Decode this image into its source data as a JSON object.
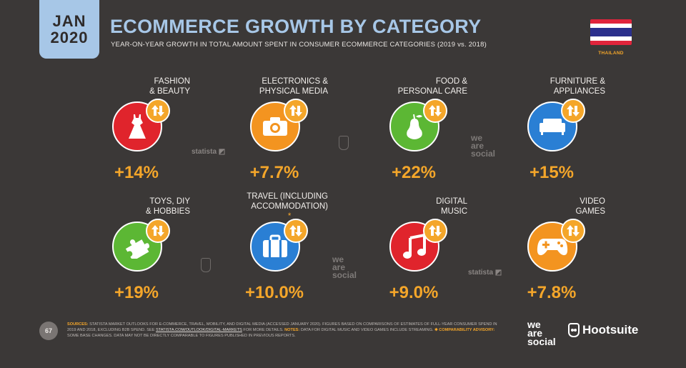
{
  "header": {
    "month": "JAN",
    "year": "2020",
    "title": "ECOMMERCE GROWTH BY CATEGORY",
    "subtitle": "YEAR-ON-YEAR GROWTH IN TOTAL AMOUNT SPENT IN CONSUMER ECOMMERCE CATEGORIES (2019 vs. 2018)"
  },
  "country": {
    "name": "THAILAND",
    "flag_colors": [
      "#e0243c",
      "#ffffff",
      "#2b2f8c",
      "#ffffff",
      "#e0243c"
    ]
  },
  "categories": [
    {
      "label_lines": [
        "FASHION",
        "& BEAUTY"
      ],
      "value": "+14%",
      "icon": "dress-icon",
      "color": "#e0242c"
    },
    {
      "label_lines": [
        "ELECTRONICS &",
        "PHYSICAL MEDIA"
      ],
      "value": "+7.7%",
      "icon": "camera-icon",
      "color": "#f39420"
    },
    {
      "label_lines": [
        "FOOD &",
        "PERSONAL CARE"
      ],
      "value": "+22%",
      "icon": "pear-icon",
      "color": "#5cb734"
    },
    {
      "label_lines": [
        "FURNITURE &",
        "APPLIANCES"
      ],
      "value": "+15%",
      "icon": "sofa-icon",
      "color": "#2a7fd4"
    },
    {
      "label_lines": [
        "TOYS, DIY",
        "& HOBBIES"
      ],
      "value": "+19%",
      "icon": "puzzle-icon",
      "color": "#5cb734"
    },
    {
      "label_lines": [
        "TRAVEL (INCLUDING",
        "ACCOMMODATION)"
      ],
      "asterisk": "*",
      "value": "+10.0%",
      "icon": "luggage-icon",
      "color": "#2a7fd4"
    },
    {
      "label_lines": [
        "DIGITAL",
        "MUSIC"
      ],
      "value": "+9.0%",
      "icon": "music-note-icon",
      "color": "#e0242c"
    },
    {
      "label_lines": [
        "VIDEO",
        "GAMES"
      ],
      "value": "+7.8%",
      "icon": "gamepad-icon",
      "color": "#f39420"
    }
  ],
  "watermarks": {
    "statista": "statista",
    "we": "we",
    "are": "are",
    "social": "social"
  },
  "footer": {
    "page_number": "67",
    "sources_label": "SOURCES:",
    "sources_text": "STATISTA MARKET OUTLOOKS FOR E-COMMERCE, TRAVEL, MOBILITY, AND DIGITAL MEDIA (ACCESSED JANUARY 2020). FIGURES BASED ON COMPARISONS OF ESTIMATES OF FULL-YEAR CONSUMER SPEND IN 2019 AND 2018, EXCLUDING B2B SPEND. SEE",
    "link": "STATISTA.COM/OUTLOOK/DIGITAL-MARKETS",
    "after_link": "FOR MORE DETAILS.",
    "notes_label": "NOTES:",
    "notes_text": "DATA FOR DIGITAL MUSIC AND VIDEO GAMES INCLUDE STREAMING.",
    "advisory_label": "✱ COMPARABILITY ADVISORY:",
    "advisory_text": "SOME BASE CHANGES. DATA MAY NOT BE DIRECTLY COMPARABLE TO FIGURES PUBLISHED IN PREVIOUS REPORTS."
  },
  "brand": {
    "was_we": "we",
    "was_are": "are",
    "was_social": "social",
    "hootsuite": "Hootsuite"
  }
}
